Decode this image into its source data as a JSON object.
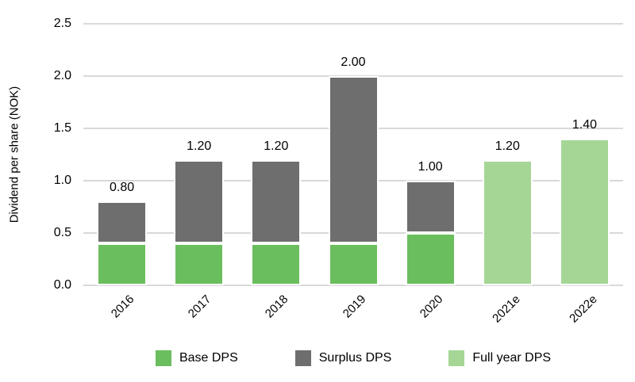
{
  "page": {
    "background": "#ffffff",
    "text_color": "#000000"
  },
  "chart_data": {
    "type": "bar",
    "stacked": true,
    "title": "",
    "xlabel": "",
    "ylabel": "Dividend per share (NOK)",
    "categories": [
      "2016",
      "2017",
      "2018",
      "2019",
      "2020",
      "2021e",
      "2022e"
    ],
    "series": [
      {
        "name": "Base DPS",
        "color": "#6BBE5D",
        "values": [
          0.4,
          0.4,
          0.4,
          0.4,
          0.5,
          0,
          0
        ]
      },
      {
        "name": "Surplus DPS",
        "color": "#6E6E6E",
        "values": [
          0.4,
          0.8,
          0.8,
          1.6,
          0.5,
          0,
          0
        ]
      },
      {
        "name": "Full year DPS",
        "color": "#A5D695",
        "values": [
          0,
          0,
          0,
          0,
          0,
          1.2,
          1.4
        ]
      }
    ],
    "totals": [
      0.8,
      1.2,
      1.2,
      2.0,
      1.0,
      1.2,
      1.4
    ],
    "total_labels": [
      "0.80",
      "1.20",
      "1.20",
      "2.00",
      "1.00",
      "1.20",
      "1.40"
    ],
    "y_ticks": [
      2.5,
      2.0,
      1.5,
      1.0,
      0.5,
      0.0
    ],
    "y_tick_labels": [
      "2.5",
      "2.0",
      "1.5",
      "1.0",
      "0.5",
      "0.0"
    ],
    "ylim": [
      0,
      2.5
    ],
    "grid": true,
    "gridline_color": "#D9D9D9",
    "legend_position": "bottom",
    "bar_border_color": "#FFFFFF"
  }
}
